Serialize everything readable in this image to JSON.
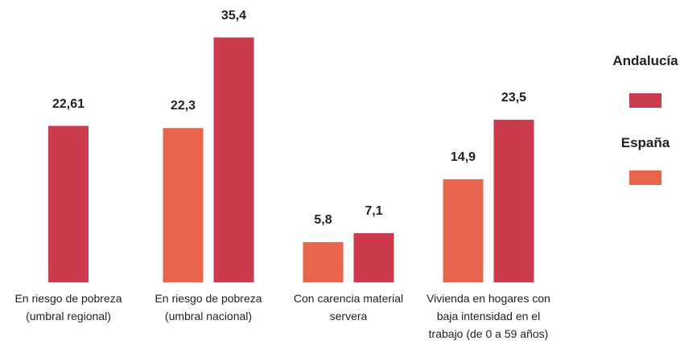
{
  "chart_data": {
    "type": "bar",
    "categories": [
      "En riesgo de pobreza\n(umbral regional)",
      "En riesgo de pobreza\n(umbral nacional)",
      "Con carencia material\nservera",
      "Vivienda en hogares con\nbaja intensidad en el\ntrabajo (de 0 a 59 años)"
    ],
    "series": [
      {
        "name": "Andalucía",
        "color": "#cc3a4e",
        "values": [
          22.61,
          35.4,
          7.1,
          23.5
        ],
        "value_labels": [
          "22,61",
          "35,4",
          "7,1",
          "23,5"
        ]
      },
      {
        "name": "España",
        "color": "#e8654d",
        "values": [
          null,
          22.3,
          5.8,
          14.9
        ],
        "value_labels": [
          null,
          "22,3",
          "5,8",
          "14,9"
        ]
      }
    ]
  }
}
